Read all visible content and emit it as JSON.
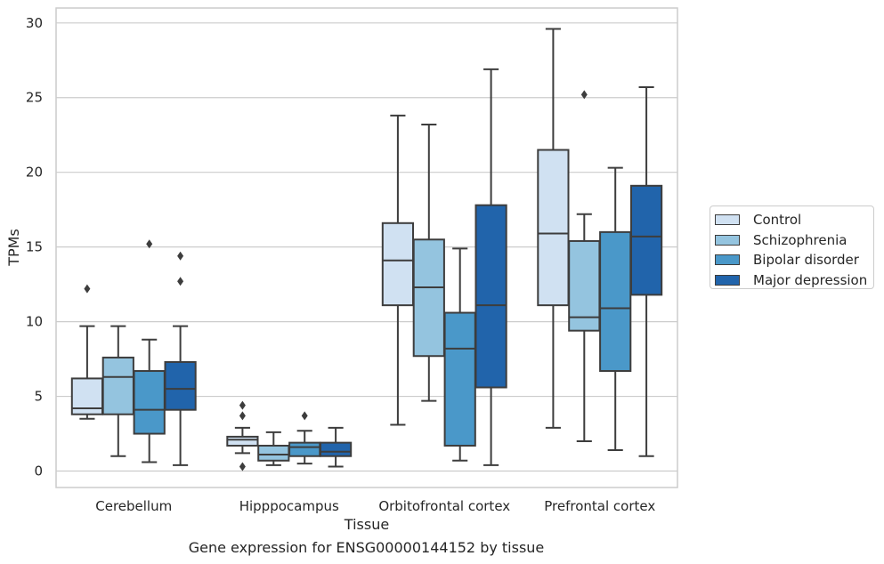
{
  "chart_data": {
    "type": "box",
    "xlabel": "Tissue",
    "ylabel": "TPMs",
    "caption": "Gene expression for ENSG00000144152 by tissue",
    "ylim": [
      -1.1,
      31
    ],
    "yticks": [
      0,
      5,
      10,
      15,
      20,
      25,
      30
    ],
    "grid": "horizontal",
    "legend_position": "outside-right",
    "categories": [
      "Cerebellum",
      "Hipppocampus",
      "Orbitofrontal cortex",
      "Prefrontal cortex"
    ],
    "series": [
      {
        "name": "Control",
        "color": "#d0e1f2",
        "boxes": [
          {
            "whislo": 3.5,
            "q1": 3.8,
            "med": 4.2,
            "q3": 6.2,
            "whishi": 9.7,
            "fliers": [
              12.2
            ]
          },
          {
            "whislo": 1.2,
            "q1": 1.7,
            "med": 2.1,
            "q3": 2.3,
            "whishi": 2.9,
            "fliers": [
              0.3,
              3.7,
              4.4
            ]
          },
          {
            "whislo": 3.1,
            "q1": 11.1,
            "med": 14.1,
            "q3": 16.6,
            "whishi": 23.8,
            "fliers": []
          },
          {
            "whislo": 2.9,
            "q1": 11.1,
            "med": 15.9,
            "q3": 21.5,
            "whishi": 29.6,
            "fliers": []
          }
        ]
      },
      {
        "name": "Schizophrenia",
        "color": "#94c4df",
        "boxes": [
          {
            "whislo": 1.0,
            "q1": 3.8,
            "med": 6.3,
            "q3": 7.6,
            "whishi": 9.7,
            "fliers": []
          },
          {
            "whislo": 0.4,
            "q1": 0.7,
            "med": 1.1,
            "q3": 1.7,
            "whishi": 2.6,
            "fliers": []
          },
          {
            "whislo": 4.7,
            "q1": 7.7,
            "med": 12.3,
            "q3": 15.5,
            "whishi": 23.2,
            "fliers": []
          },
          {
            "whislo": 2.0,
            "q1": 9.4,
            "med": 10.3,
            "q3": 15.4,
            "whishi": 17.2,
            "fliers": [
              25.2
            ]
          }
        ]
      },
      {
        "name": "Bipolar disorder",
        "color": "#4a98c9",
        "boxes": [
          {
            "whislo": 0.6,
            "q1": 2.5,
            "med": 4.1,
            "q3": 6.7,
            "whishi": 8.8,
            "fliers": [
              15.2
            ]
          },
          {
            "whislo": 0.5,
            "q1": 1.0,
            "med": 1.6,
            "q3": 1.9,
            "whishi": 2.7,
            "fliers": [
              3.7
            ]
          },
          {
            "whislo": 0.7,
            "q1": 1.7,
            "med": 8.2,
            "q3": 10.6,
            "whishi": 14.9,
            "fliers": []
          },
          {
            "whislo": 1.4,
            "q1": 6.7,
            "med": 10.9,
            "q3": 16.0,
            "whishi": 20.3,
            "fliers": []
          }
        ]
      },
      {
        "name": "Major depression",
        "color": "#2164ab",
        "boxes": [
          {
            "whislo": 0.4,
            "q1": 4.1,
            "med": 5.5,
            "q3": 7.3,
            "whishi": 9.7,
            "fliers": [
              12.7,
              14.4
            ]
          },
          {
            "whislo": 0.3,
            "q1": 1.0,
            "med": 1.3,
            "q3": 1.9,
            "whishi": 2.9,
            "fliers": []
          },
          {
            "whislo": 0.4,
            "q1": 5.6,
            "med": 11.1,
            "q3": 17.8,
            "whishi": 26.9,
            "fliers": []
          },
          {
            "whislo": 1.0,
            "q1": 11.8,
            "med": 15.7,
            "q3": 19.1,
            "whishi": 25.7,
            "fliers": []
          }
        ]
      }
    ]
  }
}
